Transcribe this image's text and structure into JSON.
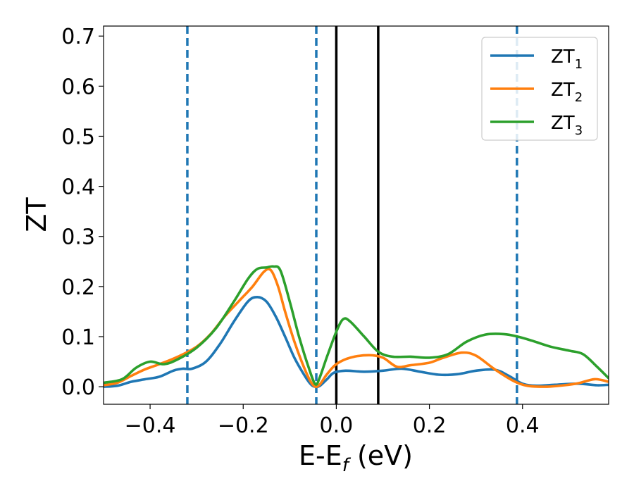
{
  "chart_data": {
    "type": "line",
    "title": "",
    "xlabel_main": "E-E",
    "xlabel_sub": "f",
    "xlabel_tail": " (eV)",
    "ylabel": "ZT",
    "xlim": [
      -0.5,
      0.585
    ],
    "ylim": [
      -0.035,
      0.72
    ],
    "xticks": [
      -0.4,
      -0.2,
      0.0,
      0.2,
      0.4
    ],
    "xtick_labels": [
      "−0.4",
      "−0.2",
      "0.0",
      "0.2",
      "0.4"
    ],
    "yticks": [
      0.0,
      0.1,
      0.2,
      0.3,
      0.4,
      0.5,
      0.6,
      0.7
    ],
    "ytick_labels": [
      "0.0",
      "0.1",
      "0.2",
      "0.3",
      "0.4",
      "0.5",
      "0.6",
      "0.7"
    ],
    "grid": false,
    "legend_position": "top-right",
    "vlines_dashed": {
      "color": "#1f77b4",
      "x": [
        -0.32,
        -0.043,
        0.388
      ]
    },
    "vlines_solid": {
      "color": "#000000",
      "x": [
        0.0,
        0.09
      ]
    },
    "series": [
      {
        "name": "ZT",
        "name_sub": "1",
        "color": "#1f77b4",
        "points": [
          [
            -0.5,
            0.0
          ],
          [
            -0.47,
            0.002
          ],
          [
            -0.44,
            0.01
          ],
          [
            -0.41,
            0.015
          ],
          [
            -0.38,
            0.02
          ],
          [
            -0.35,
            0.032
          ],
          [
            -0.33,
            0.036
          ],
          [
            -0.31,
            0.036
          ],
          [
            -0.28,
            0.05
          ],
          [
            -0.25,
            0.085
          ],
          [
            -0.22,
            0.13
          ],
          [
            -0.19,
            0.17
          ],
          [
            -0.17,
            0.179
          ],
          [
            -0.15,
            0.17
          ],
          [
            -0.13,
            0.14
          ],
          [
            -0.11,
            0.1
          ],
          [
            -0.09,
            0.058
          ],
          [
            -0.07,
            0.025
          ],
          [
            -0.055,
            0.005
          ],
          [
            -0.045,
            0.0
          ],
          [
            -0.035,
            0.002
          ],
          [
            -0.02,
            0.015
          ],
          [
            -0.005,
            0.028
          ],
          [
            0.02,
            0.032
          ],
          [
            0.06,
            0.03
          ],
          [
            0.1,
            0.032
          ],
          [
            0.14,
            0.036
          ],
          [
            0.18,
            0.03
          ],
          [
            0.22,
            0.024
          ],
          [
            0.26,
            0.025
          ],
          [
            0.3,
            0.032
          ],
          [
            0.34,
            0.034
          ],
          [
            0.37,
            0.022
          ],
          [
            0.4,
            0.006
          ],
          [
            0.43,
            0.002
          ],
          [
            0.47,
            0.004
          ],
          [
            0.52,
            0.006
          ],
          [
            0.56,
            0.003
          ],
          [
            0.585,
            0.004
          ]
        ]
      },
      {
        "name": "ZT",
        "name_sub": "2",
        "color": "#ff7f0e",
        "points": [
          [
            -0.5,
            0.003
          ],
          [
            -0.47,
            0.008
          ],
          [
            -0.44,
            0.022
          ],
          [
            -0.41,
            0.035
          ],
          [
            -0.38,
            0.045
          ],
          [
            -0.34,
            0.06
          ],
          [
            -0.3,
            0.08
          ],
          [
            -0.27,
            0.105
          ],
          [
            -0.24,
            0.14
          ],
          [
            -0.21,
            0.17
          ],
          [
            -0.18,
            0.2
          ],
          [
            -0.155,
            0.23
          ],
          [
            -0.14,
            0.232
          ],
          [
            -0.125,
            0.2
          ],
          [
            -0.11,
            0.15
          ],
          [
            -0.09,
            0.09
          ],
          [
            -0.07,
            0.04
          ],
          [
            -0.055,
            0.01
          ],
          [
            -0.045,
            0.0
          ],
          [
            -0.035,
            0.005
          ],
          [
            -0.02,
            0.025
          ],
          [
            0.0,
            0.045
          ],
          [
            0.03,
            0.058
          ],
          [
            0.07,
            0.063
          ],
          [
            0.1,
            0.058
          ],
          [
            0.13,
            0.04
          ],
          [
            0.16,
            0.043
          ],
          [
            0.2,
            0.048
          ],
          [
            0.23,
            0.058
          ],
          [
            0.27,
            0.068
          ],
          [
            0.3,
            0.062
          ],
          [
            0.34,
            0.035
          ],
          [
            0.38,
            0.012
          ],
          [
            0.41,
            0.002
          ],
          [
            0.45,
            0.0
          ],
          [
            0.49,
            0.003
          ],
          [
            0.52,
            0.007
          ],
          [
            0.555,
            0.015
          ],
          [
            0.585,
            0.01
          ]
        ]
      },
      {
        "name": "ZT",
        "name_sub": "3",
        "color": "#2ca02c",
        "points": [
          [
            -0.5,
            0.008
          ],
          [
            -0.46,
            0.015
          ],
          [
            -0.43,
            0.038
          ],
          [
            -0.4,
            0.05
          ],
          [
            -0.37,
            0.045
          ],
          [
            -0.34,
            0.055
          ],
          [
            -0.3,
            0.078
          ],
          [
            -0.26,
            0.115
          ],
          [
            -0.22,
            0.17
          ],
          [
            -0.19,
            0.215
          ],
          [
            -0.17,
            0.235
          ],
          [
            -0.15,
            0.238
          ],
          [
            -0.135,
            0.24
          ],
          [
            -0.12,
            0.232
          ],
          [
            -0.1,
            0.17
          ],
          [
            -0.08,
            0.1
          ],
          [
            -0.06,
            0.04
          ],
          [
            -0.045,
            0.005
          ],
          [
            -0.035,
            0.02
          ],
          [
            -0.02,
            0.06
          ],
          [
            0.0,
            0.11
          ],
          [
            0.015,
            0.135
          ],
          [
            0.03,
            0.13
          ],
          [
            0.06,
            0.1
          ],
          [
            0.09,
            0.07
          ],
          [
            0.12,
            0.06
          ],
          [
            0.16,
            0.06
          ],
          [
            0.2,
            0.058
          ],
          [
            0.24,
            0.065
          ],
          [
            0.28,
            0.09
          ],
          [
            0.32,
            0.104
          ],
          [
            0.36,
            0.105
          ],
          [
            0.39,
            0.1
          ],
          [
            0.42,
            0.092
          ],
          [
            0.46,
            0.08
          ],
          [
            0.5,
            0.072
          ],
          [
            0.53,
            0.065
          ],
          [
            0.56,
            0.04
          ],
          [
            0.585,
            0.017
          ]
        ]
      }
    ]
  }
}
